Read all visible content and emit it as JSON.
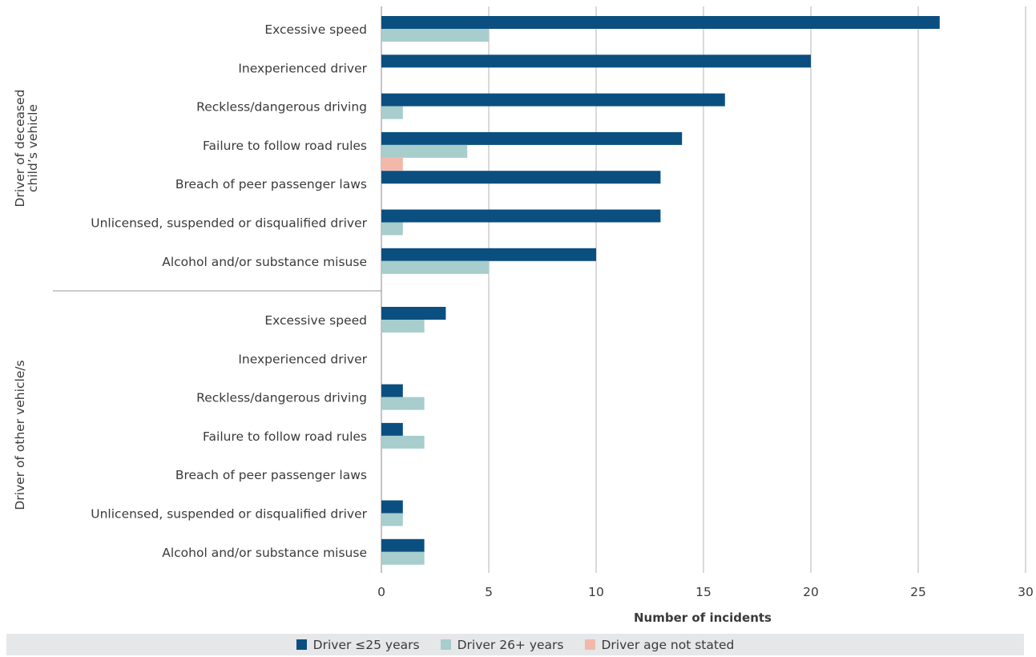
{
  "chart_data": {
    "type": "bar",
    "orientation": "horizontal",
    "xlabel": "Number of incidents",
    "xlim": [
      0,
      30
    ],
    "xticks": [
      0,
      5,
      10,
      15,
      20,
      25,
      30
    ],
    "grid": true,
    "legend_position": "bottom",
    "groups": [
      {
        "label": "Driver of deceased child’s vehicle",
        "categories": [
          "Excessive speed",
          "Inexperienced driver",
          "Reckless/dangerous driving",
          "Failure to follow road rules",
          "Breach of peer passenger laws",
          "Unlicensed, suspended or disqualified driver",
          "Alcohol and/or substance misuse"
        ],
        "series": [
          {
            "name": "Driver ≤25 years",
            "values": [
              26,
              20,
              16,
              14,
              13,
              13,
              10
            ]
          },
          {
            "name": "Driver 26+ years",
            "values": [
              5,
              0,
              1,
              4,
              0,
              1,
              5
            ]
          },
          {
            "name": "Driver age not stated",
            "values": [
              0,
              0,
              0,
              1,
              0,
              0,
              0
            ]
          }
        ]
      },
      {
        "label": "Driver of other vehicle/s",
        "categories": [
          "Excessive speed",
          "Inexperienced driver",
          "Reckless/dangerous driving",
          "Failure to follow road rules",
          "Breach of peer passenger laws",
          "Unlicensed, suspended or disqualified driver",
          "Alcohol and/or substance misuse"
        ],
        "series": [
          {
            "name": "Driver ≤25 years",
            "values": [
              3,
              0,
              1,
              1,
              0,
              1,
              2
            ]
          },
          {
            "name": "Driver 26+ years",
            "values": [
              2,
              0,
              2,
              2,
              0,
              1,
              2
            ]
          },
          {
            "name": "Driver age not stated",
            "values": [
              0,
              0,
              0,
              0,
              0,
              0,
              0
            ]
          }
        ]
      }
    ],
    "colors": {
      "Driver ≤25 years": "#0b4f80",
      "Driver 26+ years": "#a7cdcc",
      "Driver age not stated": "#f2b8aa"
    }
  }
}
